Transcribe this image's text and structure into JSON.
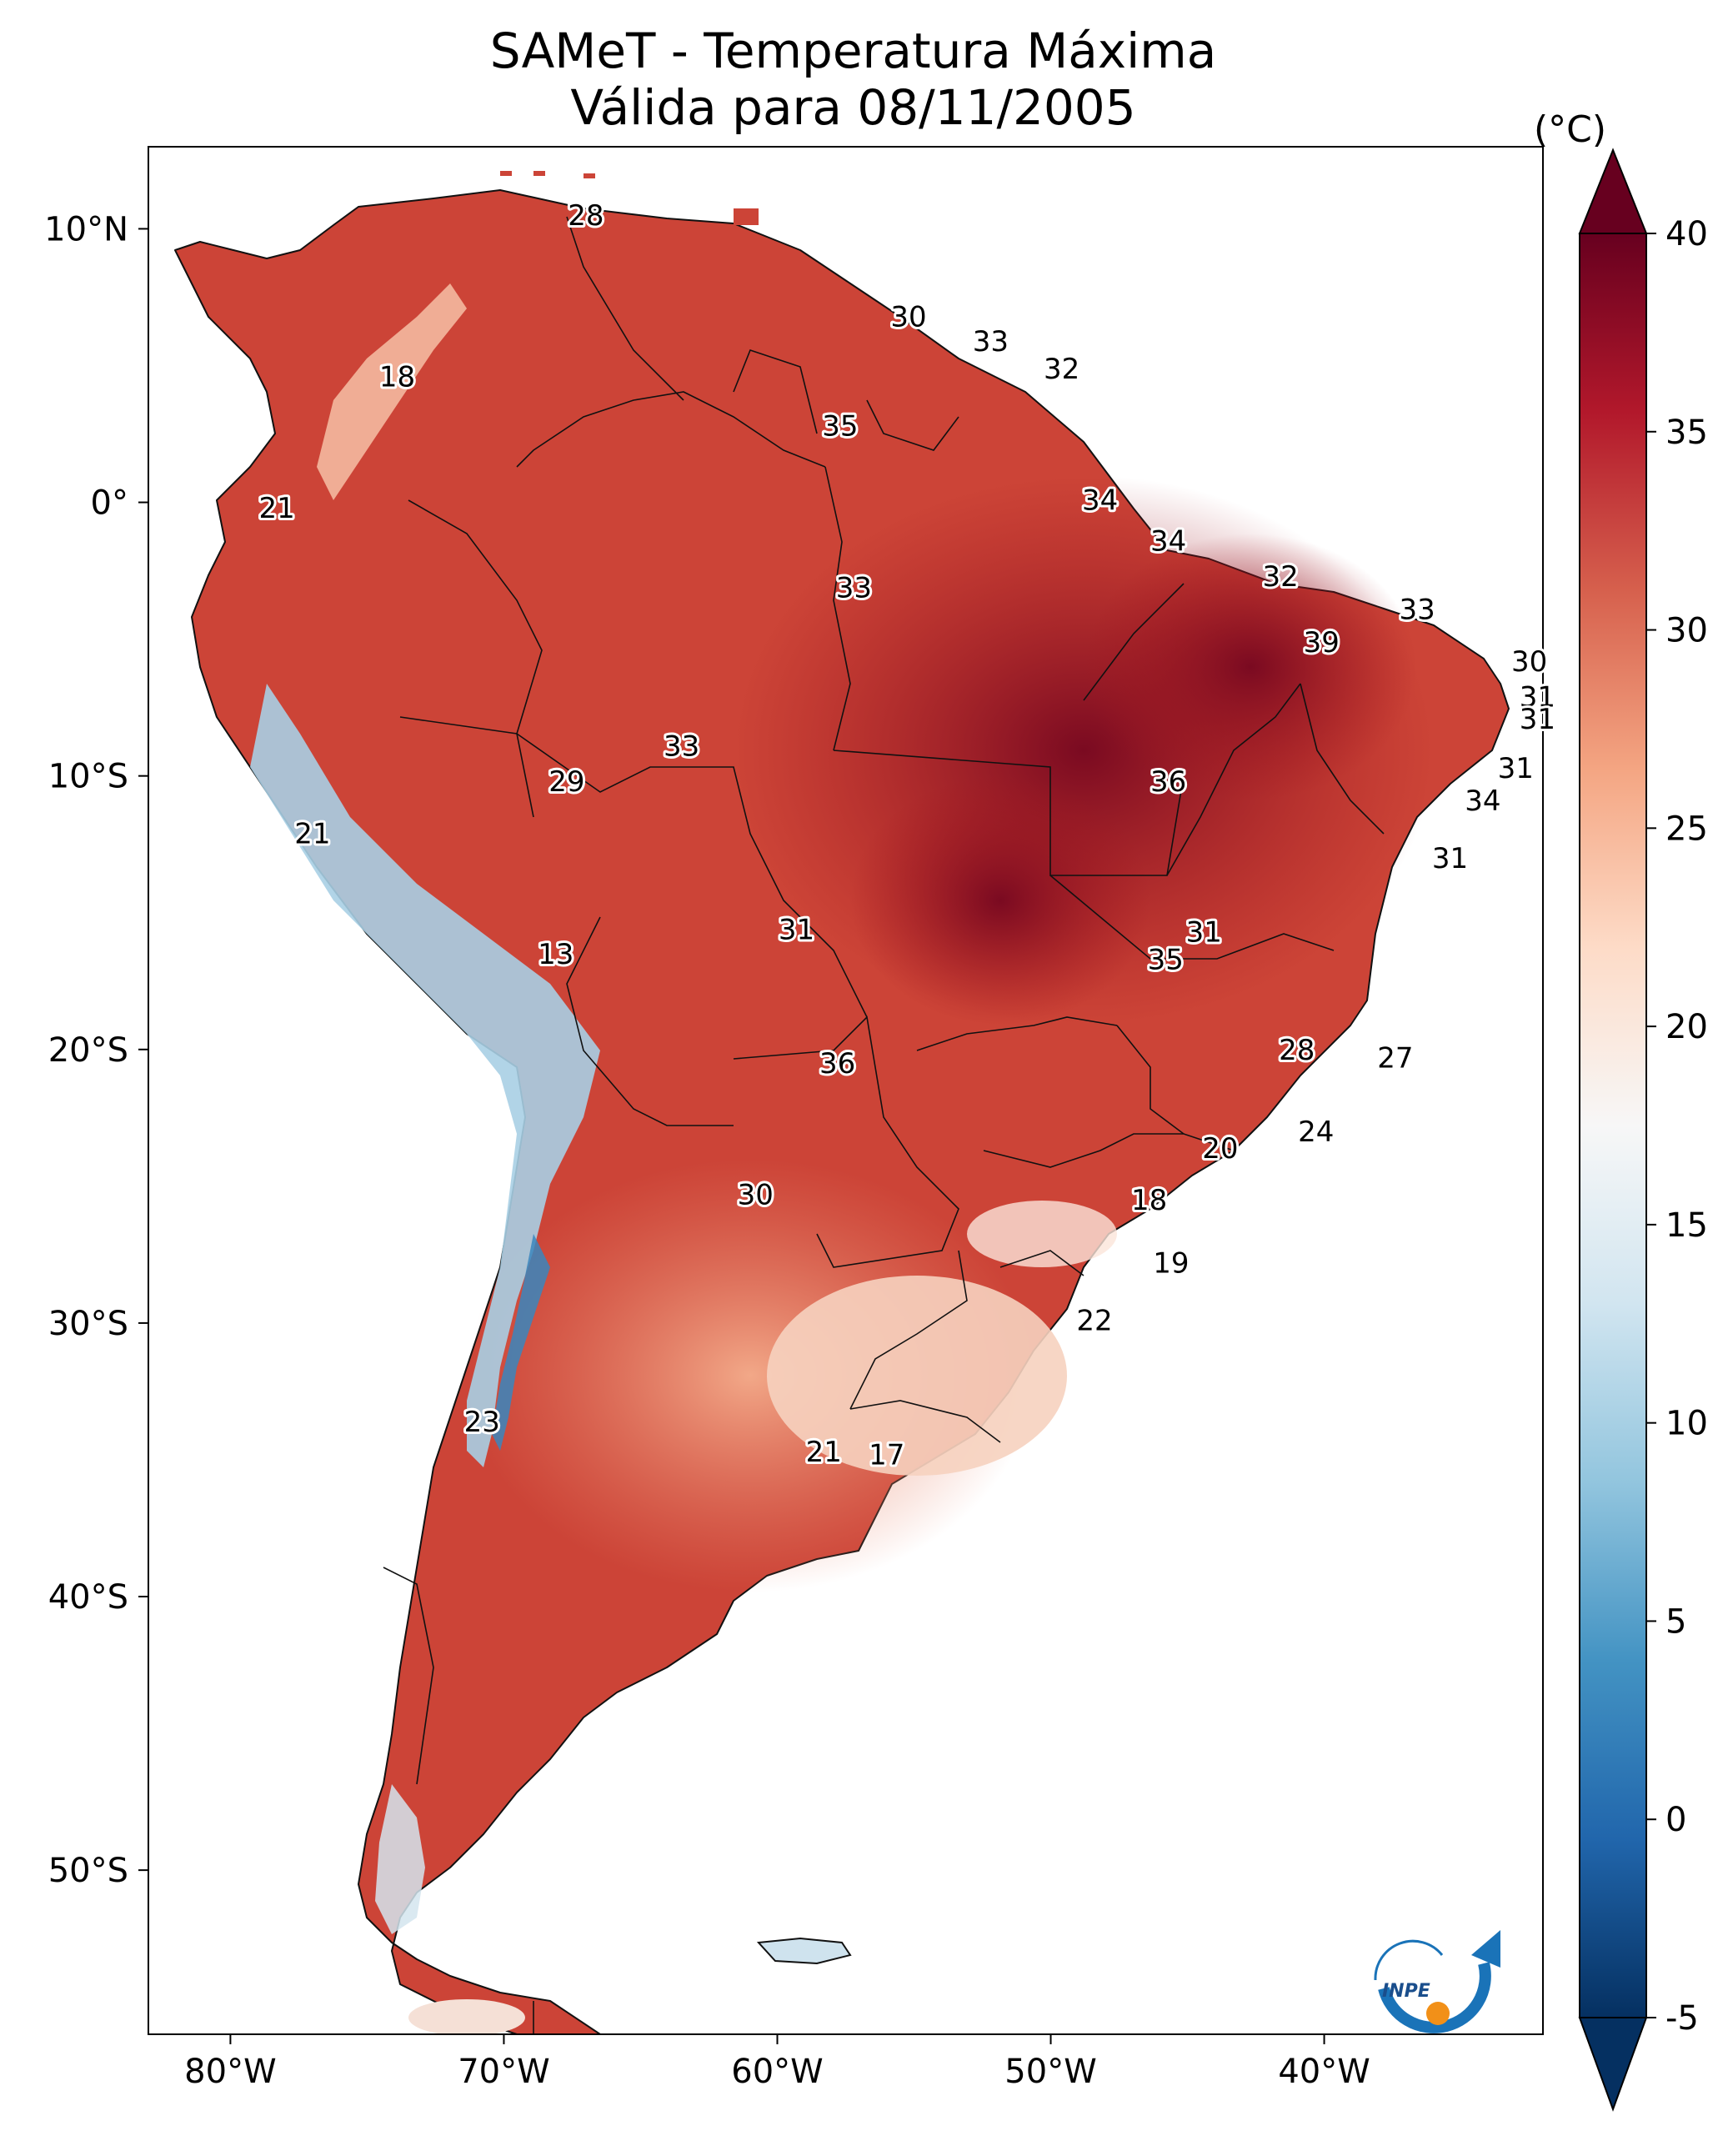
{
  "title": {
    "line1": "SAMeT - Temperatura Máxima",
    "line2": "Válida para 08/11/2005"
  },
  "colorbar": {
    "unit": "(°C)",
    "ticks": [
      "40",
      "35",
      "30",
      "25",
      "20",
      "15",
      "10",
      "5",
      "0",
      "-5"
    ],
    "min": -5,
    "max": 40,
    "colors": [
      "#053061",
      "#2166ac",
      "#4393c3",
      "#92c5de",
      "#d1e5f0",
      "#f7f7f7",
      "#fddbc7",
      "#f4a582",
      "#d6604d",
      "#b2182b",
      "#67001f"
    ]
  },
  "axes": {
    "lon_ticks": [
      "80°W",
      "70°W",
      "60°W",
      "50°W",
      "40°W"
    ],
    "lat_ticks": [
      "10°N",
      "0°",
      "10°S",
      "20°S",
      "30°S",
      "40°S",
      "50°S"
    ]
  },
  "station_labels": [
    {
      "value": "28",
      "lon": -67.0,
      "lat": 10.5
    },
    {
      "value": "18",
      "lon": -73.9,
      "lat": 4.6
    },
    {
      "value": "30",
      "lon": -55.2,
      "lat": 6.8
    },
    {
      "value": "33",
      "lon": -52.2,
      "lat": 5.9
    },
    {
      "value": "32",
      "lon": -49.6,
      "lat": 4.9
    },
    {
      "value": "35",
      "lon": -57.7,
      "lat": 2.8
    },
    {
      "value": "21",
      "lon": -78.3,
      "lat": -0.2
    },
    {
      "value": "34",
      "lon": -48.2,
      "lat": 0.1
    },
    {
      "value": "34",
      "lon": -45.7,
      "lat": -1.4
    },
    {
      "value": "33",
      "lon": -57.2,
      "lat": -3.1
    },
    {
      "value": "32",
      "lon": -41.6,
      "lat": -2.7
    },
    {
      "value": "33",
      "lon": -36.6,
      "lat": -3.9
    },
    {
      "value": "39",
      "lon": -40.1,
      "lat": -5.1
    },
    {
      "value": "30",
      "lon": -32.5,
      "lat": -5.8
    },
    {
      "value": "31",
      "lon": -32.2,
      "lat": -7.1
    },
    {
      "value": "31",
      "lon": -32.2,
      "lat": -7.9
    },
    {
      "value": "33",
      "lon": -63.5,
      "lat": -8.9
    },
    {
      "value": "29",
      "lon": -67.7,
      "lat": -10.2
    },
    {
      "value": "36",
      "lon": -45.7,
      "lat": -10.2
    },
    {
      "value": "31",
      "lon": -33.0,
      "lat": -9.7
    },
    {
      "value": "34",
      "lon": -34.2,
      "lat": -10.9
    },
    {
      "value": "21",
      "lon": -77.0,
      "lat": -12.1
    },
    {
      "value": "31",
      "lon": -35.4,
      "lat": -13.0
    },
    {
      "value": "31",
      "lon": -44.4,
      "lat": -15.7
    },
    {
      "value": "31",
      "lon": -59.3,
      "lat": -15.6
    },
    {
      "value": "35",
      "lon": -45.8,
      "lat": -16.7
    },
    {
      "value": "13",
      "lon": -68.1,
      "lat": -16.5
    },
    {
      "value": "28",
      "lon": -41.0,
      "lat": -20.0
    },
    {
      "value": "27",
      "lon": -37.4,
      "lat": -20.3
    },
    {
      "value": "36",
      "lon": -57.8,
      "lat": -20.5
    },
    {
      "value": "24",
      "lon": -40.3,
      "lat": -23.0
    },
    {
      "value": "20",
      "lon": -43.8,
      "lat": -23.6
    },
    {
      "value": "30",
      "lon": -60.8,
      "lat": -25.3
    },
    {
      "value": "18",
      "lon": -46.4,
      "lat": -25.5
    },
    {
      "value": "19",
      "lon": -45.6,
      "lat": -27.8
    },
    {
      "value": "22",
      "lon": -48.4,
      "lat": -29.9
    },
    {
      "value": "23",
      "lon": -70.8,
      "lat": -33.6
    },
    {
      "value": "21",
      "lon": -58.3,
      "lat": -34.7
    },
    {
      "value": "17",
      "lon": -56.0,
      "lat": -34.8
    }
  ],
  "logo": {
    "text": "INPE"
  }
}
